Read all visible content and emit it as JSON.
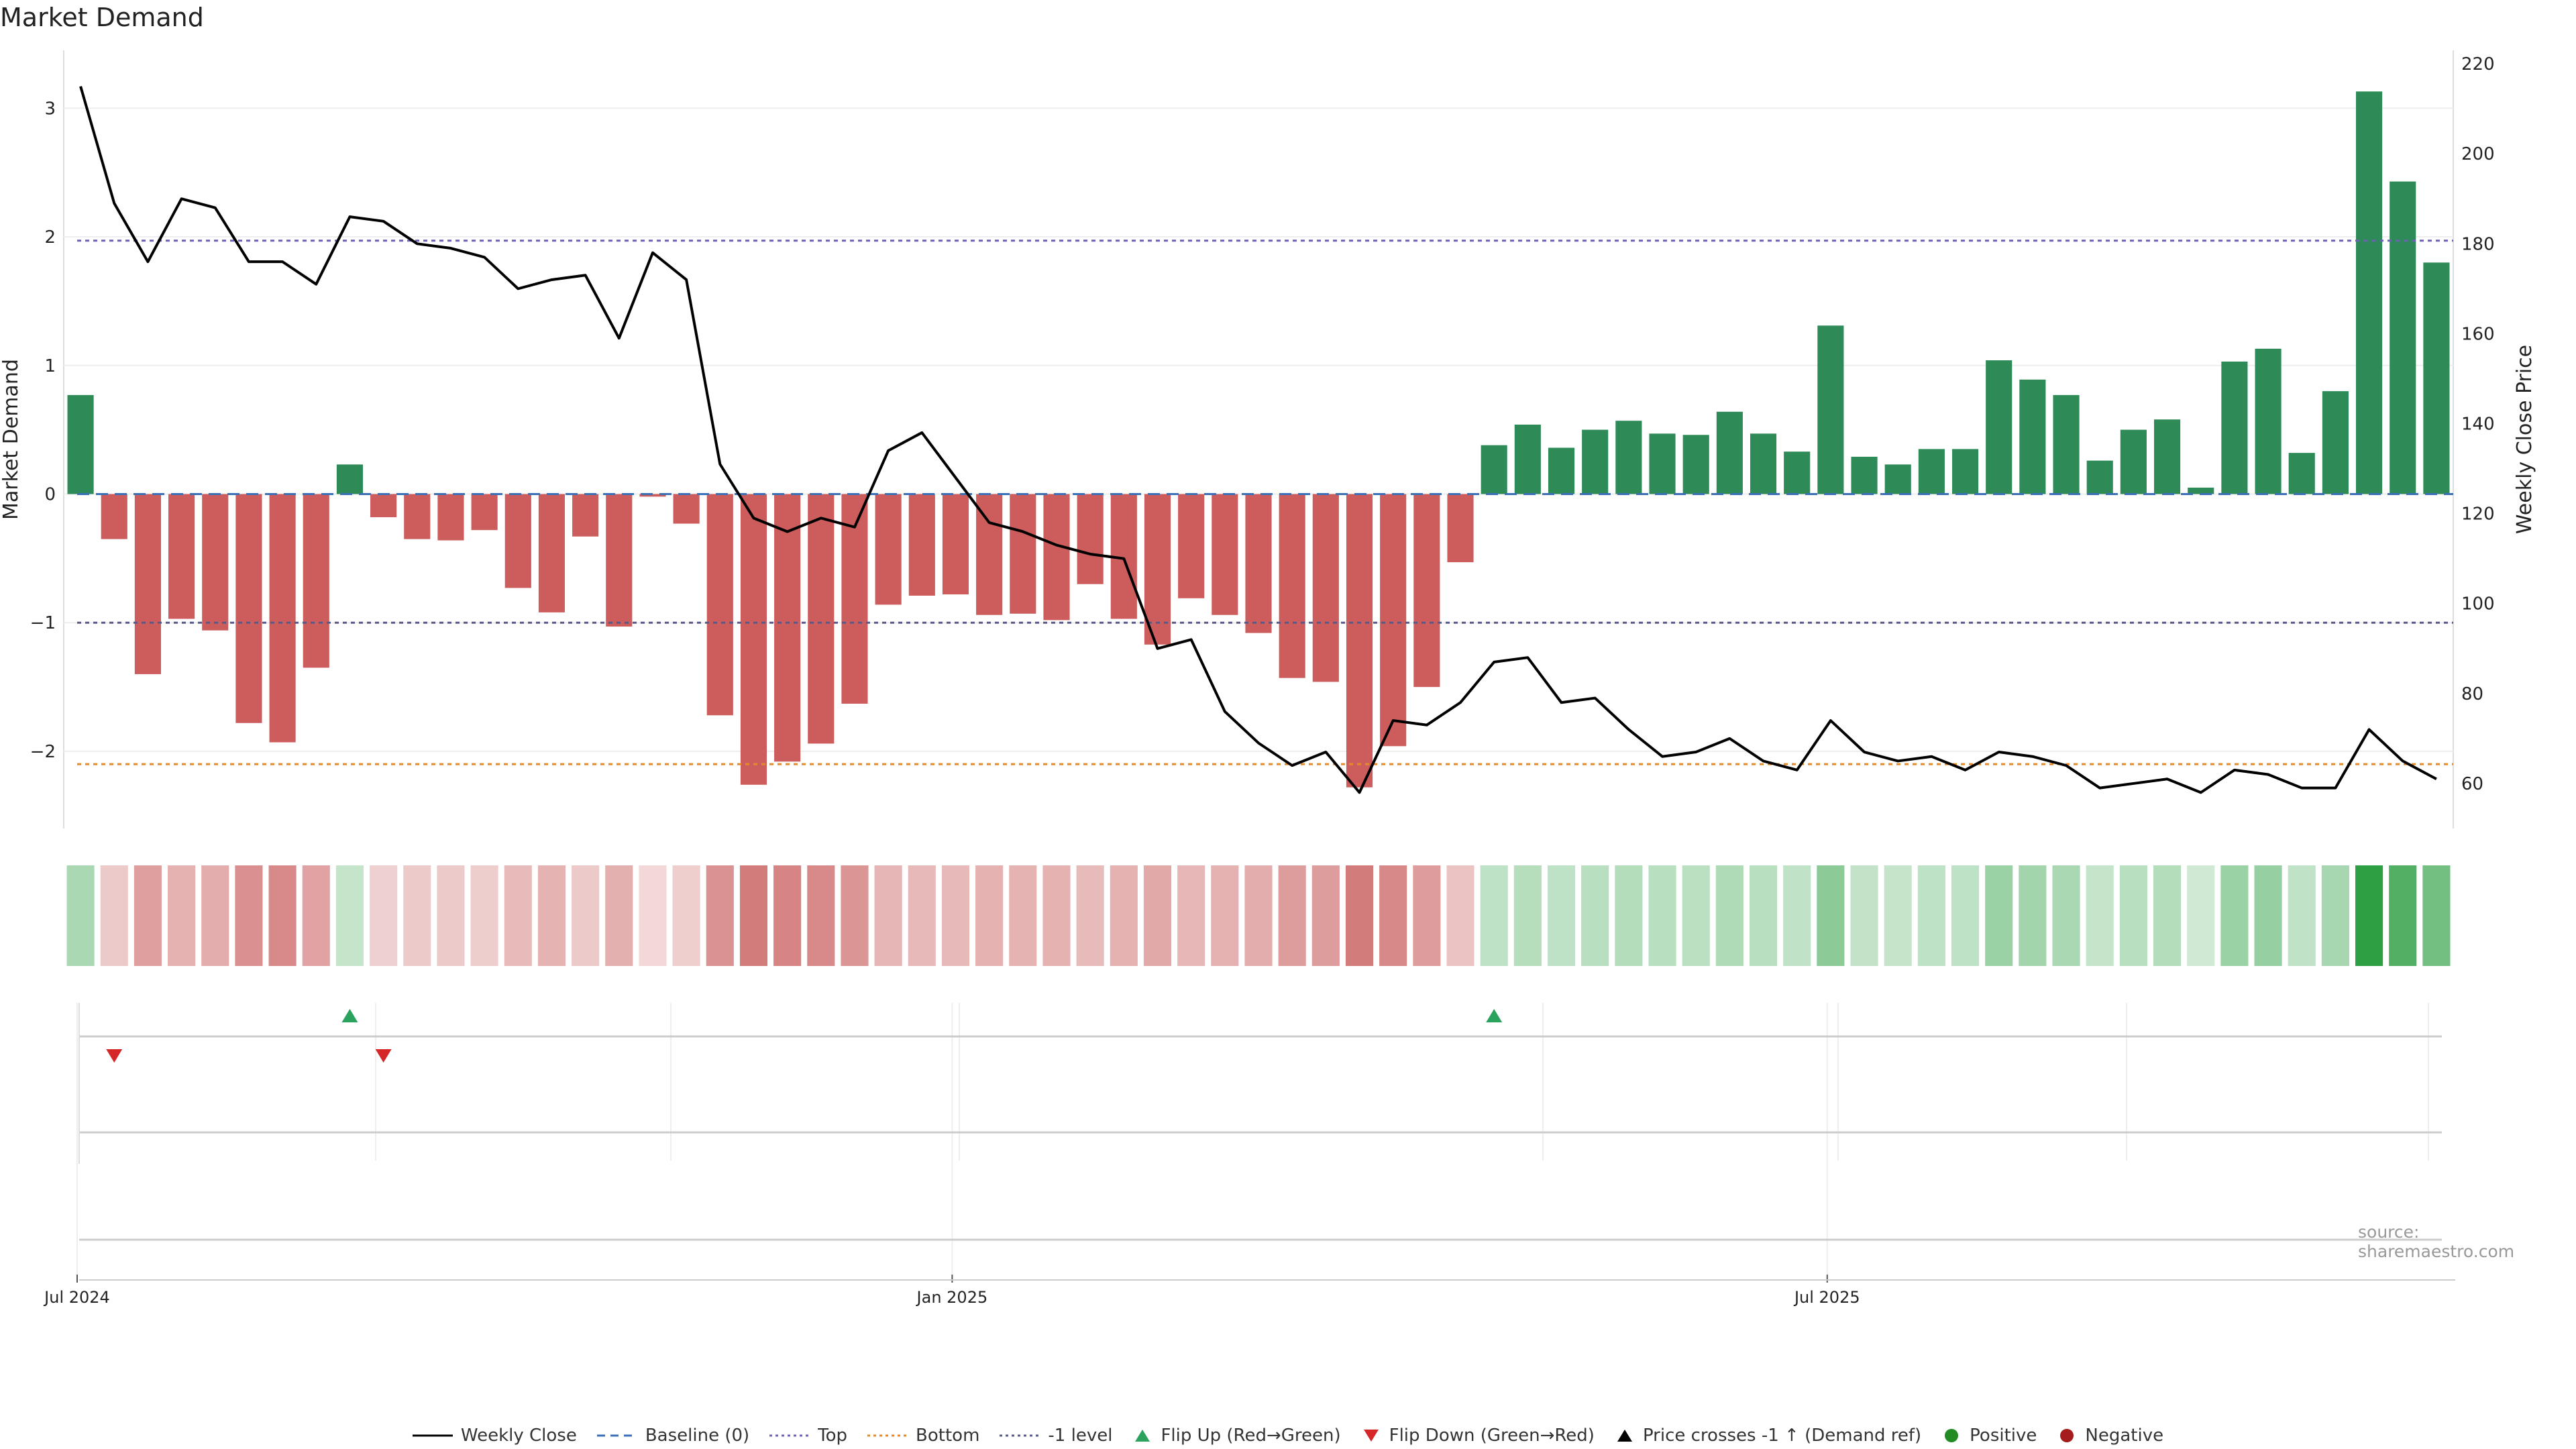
{
  "chart_data": {
    "type": "bar",
    "title": "Market Demand",
    "ylabel": "Market Demand",
    "y2label": "Weekly Close Price",
    "ylim": [
      -2.6,
      3.45
    ],
    "y2lim": [
      50,
      223
    ],
    "yticks": [
      3,
      2,
      1,
      0,
      -1,
      -2
    ],
    "ytick_labels": [
      "3",
      "2",
      "1",
      "0",
      "−1",
      "−2"
    ],
    "y2ticks": [
      220,
      200,
      180,
      160,
      140,
      120,
      100,
      80,
      60
    ],
    "xticks": [
      {
        "week": 0,
        "label": "Jul 2024"
      },
      {
        "week": 26,
        "label": "Jan 2025"
      },
      {
        "week": 52,
        "label": "Jul 2025"
      }
    ],
    "weeks": 71,
    "demand": [
      0.77,
      -0.35,
      -1.4,
      -0.97,
      -1.06,
      -1.78,
      -1.93,
      -1.35,
      0.23,
      -0.18,
      -0.35,
      -0.36,
      -0.28,
      -0.73,
      -0.92,
      -0.33,
      -1.03,
      -0.02,
      -0.23,
      -1.72,
      -2.26,
      -2.08,
      -1.94,
      -1.63,
      -0.86,
      -0.79,
      -0.78,
      -0.94,
      -0.93,
      -0.98,
      -0.7,
      -0.97,
      -1.17,
      -0.81,
      -0.94,
      -1.08,
      -1.43,
      -1.46,
      -2.28,
      -1.96,
      -1.5,
      -0.53,
      0.38,
      0.54,
      0.36,
      0.5,
      0.57,
      0.47,
      0.46,
      0.64,
      0.47,
      0.33,
      1.31,
      0.29,
      0.23,
      0.35,
      0.35,
      1.04,
      0.89,
      0.77,
      0.26,
      0.5,
      0.58,
      0.05,
      1.03,
      1.13,
      0.32,
      0.8,
      3.13,
      2.43,
      1.8
    ],
    "close": [
      215,
      189,
      176,
      190,
      188,
      176,
      176,
      171,
      186,
      185,
      180,
      179,
      177,
      170,
      172,
      173,
      159,
      178,
      172,
      131,
      119,
      116,
      119,
      117,
      134,
      138,
      128,
      118,
      116,
      113,
      111,
      110,
      90,
      92,
      76,
      69,
      64,
      67,
      58,
      74,
      73,
      78,
      87,
      88,
      78,
      79,
      72,
      66,
      67,
      70,
      65,
      63,
      74,
      67,
      65,
      66,
      63,
      67,
      66,
      64,
      59,
      60,
      61,
      58,
      63,
      62,
      59,
      59,
      72,
      65,
      61
    ],
    "reference_lines": {
      "baseline": 0,
      "top": 1.97,
      "bottom": -2.1,
      "minus_one": -1
    },
    "flip_up_weeks": [
      8,
      42
    ],
    "flip_down_weeks": [
      1,
      9
    ],
    "price_cross_weeks": [],
    "legend": [
      {
        "label": "Weekly Close",
        "kind": "line-solid",
        "color": "#000000"
      },
      {
        "label": "Baseline (0)",
        "kind": "line-dash",
        "color": "#3b6fb6"
      },
      {
        "label": "Top",
        "kind": "line-dot",
        "color": "#6c63b5"
      },
      {
        "label": "Bottom",
        "kind": "line-dot",
        "color": "#e58a2b"
      },
      {
        "label": "-1 level",
        "kind": "line-dot",
        "color": "#5a5a8a"
      },
      {
        "label": "Flip Up (Red→Green)",
        "kind": "tri-up",
        "color": "#2ca25f"
      },
      {
        "label": "Flip Down (Green→Red)",
        "kind": "tri-down",
        "color": "#d62728"
      },
      {
        "label": "Price crosses -1 ↑ (Demand ref)",
        "kind": "tri-up",
        "color": "#000000"
      },
      {
        "label": "Positive",
        "kind": "dot",
        "color": "#228b22"
      },
      {
        "label": "Negative",
        "kind": "dot",
        "color": "#a61c1c"
      }
    ],
    "colors": {
      "positive": "#2e8b57",
      "negative": "#cd5c5c",
      "price": "#000000"
    }
  },
  "source": "source: sharemaestro.com"
}
